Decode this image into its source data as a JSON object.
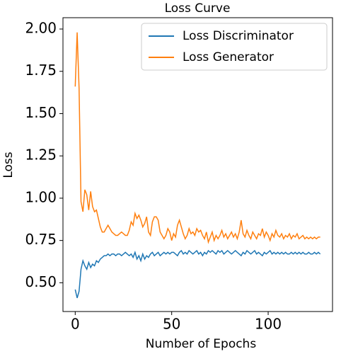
{
  "chart_data": {
    "type": "line",
    "title": "Loss Curve",
    "x_label": "Number of Epochs",
    "y_label": "Loss",
    "x": [
      0,
      1,
      2,
      3,
      4,
      5,
      6,
      7,
      8,
      9,
      10,
      11,
      12,
      13,
      14,
      15,
      16,
      17,
      18,
      19,
      20,
      21,
      22,
      23,
      24,
      25,
      26,
      27,
      28,
      29,
      30,
      31,
      32,
      33,
      34,
      35,
      36,
      37,
      38,
      39,
      40,
      41,
      42,
      43,
      44,
      45,
      46,
      47,
      48,
      49,
      50,
      51,
      52,
      53,
      54,
      55,
      56,
      57,
      58,
      59,
      60,
      61,
      62,
      63,
      64,
      65,
      66,
      67,
      68,
      69,
      70,
      71,
      72,
      73,
      74,
      75,
      76,
      77,
      78,
      79,
      80,
      81,
      82,
      83,
      84,
      85,
      86,
      87,
      88,
      89,
      90,
      91,
      92,
      93,
      94,
      95,
      96,
      97,
      98,
      99,
      100,
      101,
      102,
      103,
      104,
      105,
      106,
      107,
      108,
      109,
      110,
      111,
      112,
      113,
      114,
      115,
      116,
      117,
      118,
      119,
      120,
      121,
      122,
      123,
      124,
      125,
      126,
      127
    ],
    "series": [
      {
        "name": "Loss Discriminator",
        "color": "#1f77b4",
        "values": [
          0.46,
          0.41,
          0.45,
          0.58,
          0.63,
          0.6,
          0.58,
          0.62,
          0.59,
          0.61,
          0.6,
          0.63,
          0.62,
          0.64,
          0.65,
          0.66,
          0.66,
          0.67,
          0.66,
          0.67,
          0.67,
          0.66,
          0.67,
          0.67,
          0.66,
          0.67,
          0.68,
          0.67,
          0.66,
          0.67,
          0.65,
          0.68,
          0.64,
          0.66,
          0.63,
          0.67,
          0.64,
          0.66,
          0.65,
          0.67,
          0.68,
          0.66,
          0.67,
          0.68,
          0.66,
          0.67,
          0.68,
          0.67,
          0.68,
          0.67,
          0.68,
          0.68,
          0.67,
          0.66,
          0.68,
          0.69,
          0.67,
          0.68,
          0.67,
          0.69,
          0.68,
          0.67,
          0.68,
          0.69,
          0.67,
          0.68,
          0.66,
          0.68,
          0.67,
          0.69,
          0.68,
          0.69,
          0.68,
          0.67,
          0.69,
          0.68,
          0.69,
          0.67,
          0.68,
          0.69,
          0.68,
          0.67,
          0.68,
          0.69,
          0.68,
          0.67,
          0.66,
          0.68,
          0.67,
          0.69,
          0.68,
          0.67,
          0.68,
          0.69,
          0.67,
          0.68,
          0.67,
          0.66,
          0.68,
          0.67,
          0.68,
          0.69,
          0.67,
          0.68,
          0.67,
          0.68,
          0.67,
          0.68,
          0.67,
          0.68,
          0.67,
          0.67,
          0.68,
          0.67,
          0.68,
          0.67,
          0.68,
          0.67,
          0.68,
          0.67,
          0.67,
          0.68,
          0.67,
          0.67,
          0.68,
          0.67,
          0.68,
          0.67
        ]
      },
      {
        "name": "Loss Generator",
        "color": "#ff7f0e",
        "values": [
          1.66,
          1.98,
          1.65,
          0.98,
          0.92,
          1.05,
          1.02,
          0.93,
          1.04,
          0.95,
          0.92,
          0.93,
          0.88,
          0.83,
          0.8,
          0.8,
          0.82,
          0.84,
          0.82,
          0.8,
          0.79,
          0.78,
          0.78,
          0.79,
          0.8,
          0.79,
          0.78,
          0.78,
          0.81,
          0.86,
          0.84,
          0.91,
          0.88,
          0.9,
          0.87,
          0.83,
          0.85,
          0.89,
          0.8,
          0.78,
          0.86,
          0.89,
          0.89,
          0.87,
          0.8,
          0.78,
          0.76,
          0.78,
          0.82,
          0.8,
          0.75,
          0.79,
          0.77,
          0.84,
          0.87,
          0.83,
          0.79,
          0.76,
          0.78,
          0.82,
          0.79,
          0.8,
          0.78,
          0.82,
          0.8,
          0.81,
          0.78,
          0.76,
          0.8,
          0.74,
          0.77,
          0.8,
          0.75,
          0.78,
          0.76,
          0.78,
          0.81,
          0.77,
          0.79,
          0.76,
          0.78,
          0.8,
          0.77,
          0.79,
          0.76,
          0.8,
          0.87,
          0.79,
          0.77,
          0.81,
          0.78,
          0.76,
          0.8,
          0.78,
          0.76,
          0.79,
          0.78,
          0.82,
          0.77,
          0.8,
          0.78,
          0.75,
          0.79,
          0.77,
          0.81,
          0.78,
          0.77,
          0.79,
          0.76,
          0.78,
          0.77,
          0.79,
          0.76,
          0.78,
          0.77,
          0.79,
          0.76,
          0.77,
          0.78,
          0.76,
          0.77,
          0.76,
          0.77,
          0.76,
          0.77,
          0.76,
          0.77,
          0.77
        ]
      }
    ],
    "xlim": [
      -6.35,
      133.35
    ],
    "ylim": [
      0.33,
      2.067
    ],
    "xticks": [
      0,
      50,
      100
    ],
    "yticks": [
      {
        "value": 0.5,
        "label": "0.50"
      },
      {
        "value": 0.75,
        "label": "0.75"
      },
      {
        "value": 1.0,
        "label": "1.00"
      },
      {
        "value": 1.25,
        "label": "1.25"
      },
      {
        "value": 1.5,
        "label": "1.50"
      },
      {
        "value": 1.75,
        "label": "1.75"
      },
      {
        "value": 2.0,
        "label": "2.00"
      }
    ],
    "legend": "upper right",
    "grid": false
  }
}
